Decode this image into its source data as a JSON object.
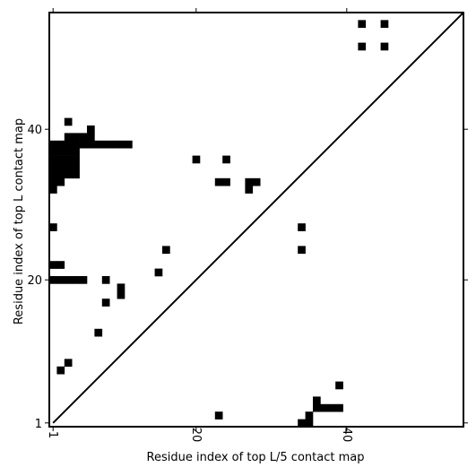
{
  "chart_data": {
    "type": "heatmap",
    "title": "",
    "xlabel": "Residue index of top L/5 contact map",
    "ylabel": "Residue index of top L contact map",
    "xlim": [
      0.5,
      55.5
    ],
    "ylim": [
      0.5,
      55.5
    ],
    "x_ticks": [
      {
        "value": 1,
        "label": "1"
      },
      {
        "value": 20,
        "label": "20"
      },
      {
        "value": 40,
        "label": "40"
      }
    ],
    "y_ticks": [
      {
        "value": 1,
        "label": "1"
      },
      {
        "value": 20,
        "label": "20"
      },
      {
        "value": 40,
        "label": "40"
      }
    ],
    "diagonal": true,
    "grid": false,
    "cell_color": "#000000",
    "background_color": "#ffffff",
    "cells": [
      [
        42,
        54
      ],
      [
        45,
        54
      ],
      [
        42,
        51
      ],
      [
        45,
        51
      ],
      [
        3,
        41
      ],
      [
        6,
        40
      ],
      [
        3,
        39
      ],
      [
        4,
        39
      ],
      [
        5,
        39
      ],
      [
        6,
        39
      ],
      [
        1,
        38
      ],
      [
        2,
        38
      ],
      [
        3,
        38
      ],
      [
        4,
        38
      ],
      [
        5,
        38
      ],
      [
        6,
        38
      ],
      [
        7,
        38
      ],
      [
        8,
        38
      ],
      [
        9,
        38
      ],
      [
        10,
        38
      ],
      [
        11,
        38
      ],
      [
        1,
        37
      ],
      [
        2,
        37
      ],
      [
        3,
        37
      ],
      [
        4,
        37
      ],
      [
        1,
        36
      ],
      [
        2,
        36
      ],
      [
        3,
        36
      ],
      [
        4,
        36
      ],
      [
        20,
        36
      ],
      [
        24,
        36
      ],
      [
        1,
        35
      ],
      [
        2,
        35
      ],
      [
        3,
        35
      ],
      [
        4,
        35
      ],
      [
        1,
        34
      ],
      [
        2,
        34
      ],
      [
        3,
        34
      ],
      [
        4,
        34
      ],
      [
        1,
        33
      ],
      [
        2,
        33
      ],
      [
        23,
        33
      ],
      [
        24,
        33
      ],
      [
        27,
        33
      ],
      [
        28,
        33
      ],
      [
        1,
        32
      ],
      [
        27,
        32
      ],
      [
        1,
        27
      ],
      [
        34,
        27
      ],
      [
        16,
        24
      ],
      [
        34,
        24
      ],
      [
        1,
        22
      ],
      [
        2,
        22
      ],
      [
        15,
        21
      ],
      [
        1,
        20
      ],
      [
        2,
        20
      ],
      [
        3,
        20
      ],
      [
        4,
        20
      ],
      [
        5,
        20
      ],
      [
        8,
        20
      ],
      [
        10,
        19
      ],
      [
        10,
        18
      ],
      [
        8,
        17
      ],
      [
        7,
        13
      ],
      [
        3,
        9
      ],
      [
        2,
        8
      ],
      [
        39,
        6
      ],
      [
        36,
        4
      ],
      [
        36,
        3
      ],
      [
        37,
        3
      ],
      [
        38,
        3
      ],
      [
        39,
        3
      ],
      [
        23,
        2
      ],
      [
        35,
        2
      ],
      [
        34,
        1
      ],
      [
        35,
        1
      ]
    ]
  }
}
